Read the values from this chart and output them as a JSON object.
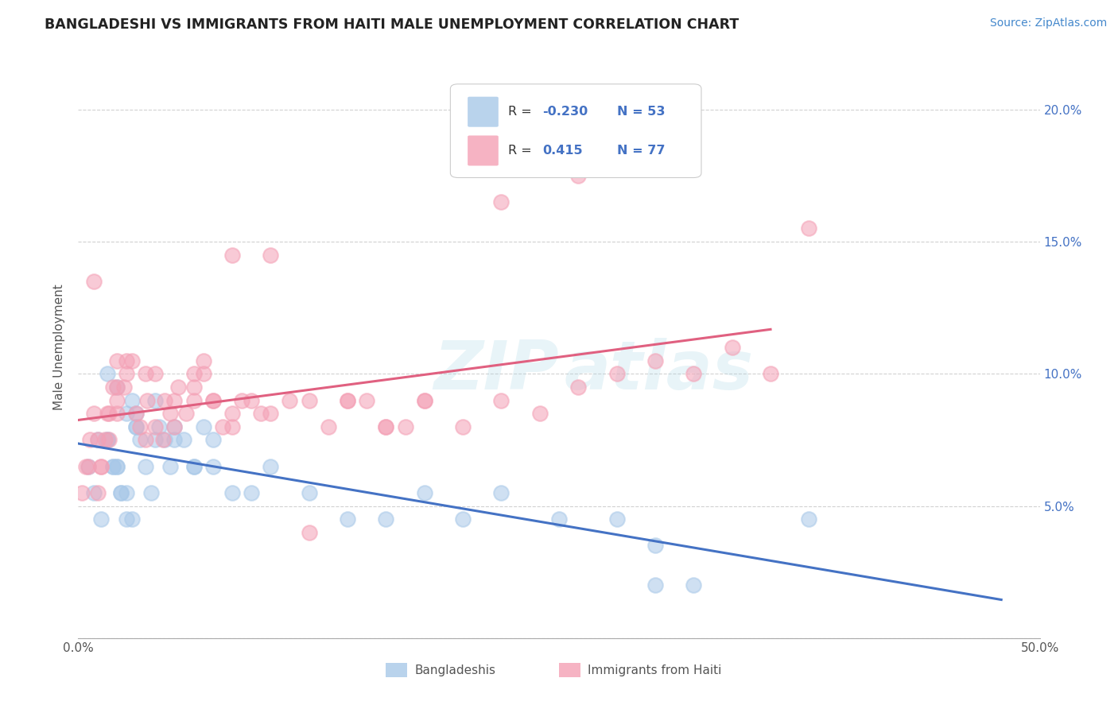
{
  "title": "BANGLADESHI VS IMMIGRANTS FROM HAITI MALE UNEMPLOYMENT CORRELATION CHART",
  "source": "Source: ZipAtlas.com",
  "ylabel": "Male Unemployment",
  "xlim": [
    0.0,
    0.5
  ],
  "ylim": [
    0.0,
    0.22
  ],
  "xticks": [
    0.0,
    0.05,
    0.1,
    0.15,
    0.2,
    0.25,
    0.3,
    0.35,
    0.4,
    0.45,
    0.5
  ],
  "xticklabels": [
    "0.0%",
    "",
    "",
    "",
    "",
    "",
    "",
    "",
    "",
    "",
    "50.0%"
  ],
  "yticks": [
    0.0,
    0.05,
    0.1,
    0.15,
    0.2
  ],
  "yticklabels": [
    "",
    "5.0%",
    "10.0%",
    "15.0%",
    "20.0%"
  ],
  "watermark": "ZIPatlas",
  "color_blue": "#a8c8e8",
  "color_pink": "#f4a0b5",
  "line_blue": "#4472c4",
  "line_pink": "#e06080",
  "tick_color": "#4472c4",
  "background": "#ffffff",
  "blue_scatter_x": [
    0.005,
    0.008,
    0.012,
    0.015,
    0.018,
    0.02,
    0.022,
    0.025,
    0.028,
    0.03,
    0.01,
    0.015,
    0.018,
    0.02,
    0.022,
    0.025,
    0.028,
    0.03,
    0.032,
    0.035,
    0.038,
    0.04,
    0.042,
    0.045,
    0.048,
    0.05,
    0.055,
    0.06,
    0.065,
    0.07,
    0.015,
    0.02,
    0.025,
    0.03,
    0.04,
    0.05,
    0.06,
    0.07,
    0.08,
    0.09,
    0.1,
    0.12,
    0.14,
    0.16,
    0.18,
    0.2,
    0.22,
    0.25,
    0.28,
    0.3,
    0.32,
    0.38,
    0.3
  ],
  "blue_scatter_y": [
    0.065,
    0.055,
    0.045,
    0.075,
    0.065,
    0.065,
    0.055,
    0.055,
    0.045,
    0.085,
    0.075,
    0.075,
    0.065,
    0.065,
    0.055,
    0.045,
    0.09,
    0.08,
    0.075,
    0.065,
    0.055,
    0.09,
    0.08,
    0.075,
    0.065,
    0.08,
    0.075,
    0.065,
    0.08,
    0.075,
    0.1,
    0.095,
    0.085,
    0.08,
    0.075,
    0.075,
    0.065,
    0.065,
    0.055,
    0.055,
    0.065,
    0.055,
    0.045,
    0.045,
    0.055,
    0.045,
    0.055,
    0.045,
    0.045,
    0.035,
    0.02,
    0.045,
    0.02
  ],
  "pink_scatter_x": [
    0.002,
    0.004,
    0.006,
    0.008,
    0.01,
    0.012,
    0.014,
    0.016,
    0.018,
    0.02,
    0.005,
    0.01,
    0.015,
    0.02,
    0.025,
    0.008,
    0.012,
    0.016,
    0.02,
    0.024,
    0.028,
    0.032,
    0.036,
    0.04,
    0.044,
    0.048,
    0.052,
    0.056,
    0.06,
    0.065,
    0.02,
    0.025,
    0.03,
    0.035,
    0.04,
    0.045,
    0.05,
    0.06,
    0.07,
    0.08,
    0.06,
    0.065,
    0.07,
    0.075,
    0.08,
    0.085,
    0.09,
    0.095,
    0.1,
    0.11,
    0.12,
    0.13,
    0.14,
    0.15,
    0.16,
    0.17,
    0.18,
    0.2,
    0.22,
    0.24,
    0.26,
    0.28,
    0.3,
    0.32,
    0.34,
    0.36,
    0.26,
    0.38,
    0.22,
    0.1,
    0.16,
    0.08,
    0.12,
    0.14,
    0.18,
    0.05,
    0.035
  ],
  "pink_scatter_y": [
    0.055,
    0.065,
    0.075,
    0.085,
    0.055,
    0.065,
    0.075,
    0.085,
    0.095,
    0.105,
    0.065,
    0.075,
    0.085,
    0.095,
    0.105,
    0.135,
    0.065,
    0.075,
    0.085,
    0.095,
    0.105,
    0.08,
    0.09,
    0.1,
    0.075,
    0.085,
    0.095,
    0.085,
    0.095,
    0.105,
    0.09,
    0.1,
    0.085,
    0.1,
    0.08,
    0.09,
    0.09,
    0.1,
    0.09,
    0.085,
    0.09,
    0.1,
    0.09,
    0.08,
    0.08,
    0.09,
    0.09,
    0.085,
    0.085,
    0.09,
    0.09,
    0.08,
    0.09,
    0.09,
    0.08,
    0.08,
    0.09,
    0.08,
    0.09,
    0.085,
    0.095,
    0.1,
    0.105,
    0.1,
    0.11,
    0.1,
    0.175,
    0.155,
    0.165,
    0.145,
    0.08,
    0.145,
    0.04,
    0.09,
    0.09,
    0.08,
    0.075
  ]
}
